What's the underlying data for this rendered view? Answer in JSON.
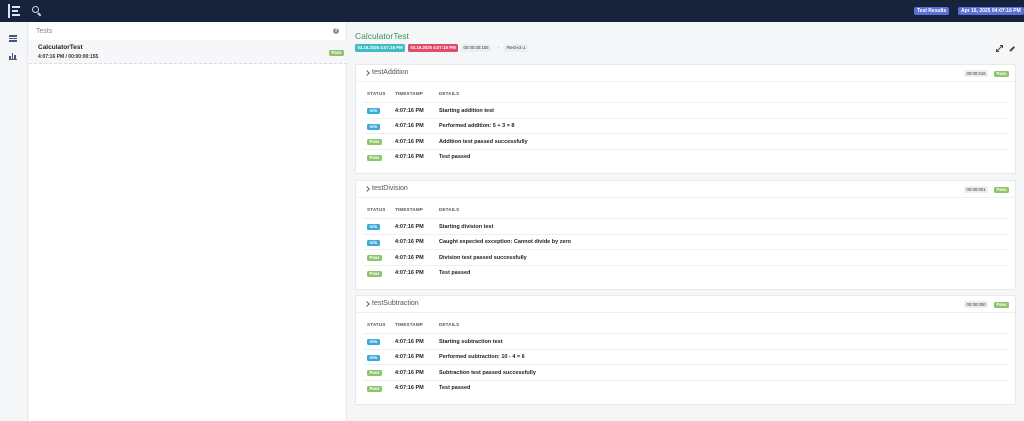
{
  "header": {
    "app_badge": "Test Results",
    "date_badge": "Apr 16, 2025 04:07:16 PM",
    "icons": {
      "logo": "report-logo-icon",
      "search": "search-icon"
    }
  },
  "leftnav": {
    "items": [
      {
        "icon": "list-icon"
      },
      {
        "icon": "bar-chart-icon"
      }
    ]
  },
  "tests_panel": {
    "title": "Tests",
    "info_icon": "?",
    "items": [
      {
        "name": "CalculatorTest",
        "meta": "4:07:16 PM / 00:00:00:155",
        "status": "Pass"
      }
    ]
  },
  "main": {
    "title": "CalculatorTest",
    "start_time": "04.16.2025 4:07:16 PM",
    "end_time": "04.16.2025 4:07:16 PM",
    "duration": "00:00:00:155",
    "separator": "·",
    "thread": "#test-id=1",
    "table_headers": {
      "status": "STATUS",
      "timestamp": "TIMESTAMP",
      "details": "DETAILS"
    },
    "tests": [
      {
        "name": "testAddition",
        "duration": "00:00:016",
        "status": "Pass",
        "logs": [
          {
            "status": "Info",
            "timestamp": "4:07:16 PM",
            "details": "Starting addition test"
          },
          {
            "status": "Info",
            "timestamp": "4:07:16 PM",
            "details": "Performed addition: 5 + 3 = 8"
          },
          {
            "status": "Pass",
            "timestamp": "4:07:16 PM",
            "details": "Addition test passed successfully"
          },
          {
            "status": "Pass",
            "timestamp": "4:07:16 PM",
            "details": "Test passed"
          }
        ]
      },
      {
        "name": "testDivision",
        "duration": "00:00:001",
        "status": "Pass",
        "logs": [
          {
            "status": "Info",
            "timestamp": "4:07:16 PM",
            "details": "Starting division test"
          },
          {
            "status": "Info",
            "timestamp": "4:07:16 PM",
            "details": "Caught expected exception: Cannot divide by zero"
          },
          {
            "status": "Pass",
            "timestamp": "4:07:16 PM",
            "details": "Division test passed successfully"
          },
          {
            "status": "Pass",
            "timestamp": "4:07:16 PM",
            "details": "Test passed"
          }
        ]
      },
      {
        "name": "testSubtraction",
        "duration": "00:00:000",
        "status": "Pass",
        "logs": [
          {
            "status": "Info",
            "timestamp": "4:07:16 PM",
            "details": "Starting subtraction test"
          },
          {
            "status": "Info",
            "timestamp": "4:07:16 PM",
            "details": "Performed subtraction: 10 - 4 = 6"
          },
          {
            "status": "Pass",
            "timestamp": "4:07:16 PM",
            "details": "Subtraction test passed successfully"
          },
          {
            "status": "Pass",
            "timestamp": "4:07:16 PM",
            "details": "Test passed"
          }
        ]
      }
    ]
  },
  "colors": {
    "topbar": "#17233b",
    "badge": "#5b6fd6",
    "pass": "#8fc56a",
    "info": "#3aa8d8",
    "start": "#40bcc6",
    "end": "#e24b6c",
    "title": "#3a8f5f"
  }
}
